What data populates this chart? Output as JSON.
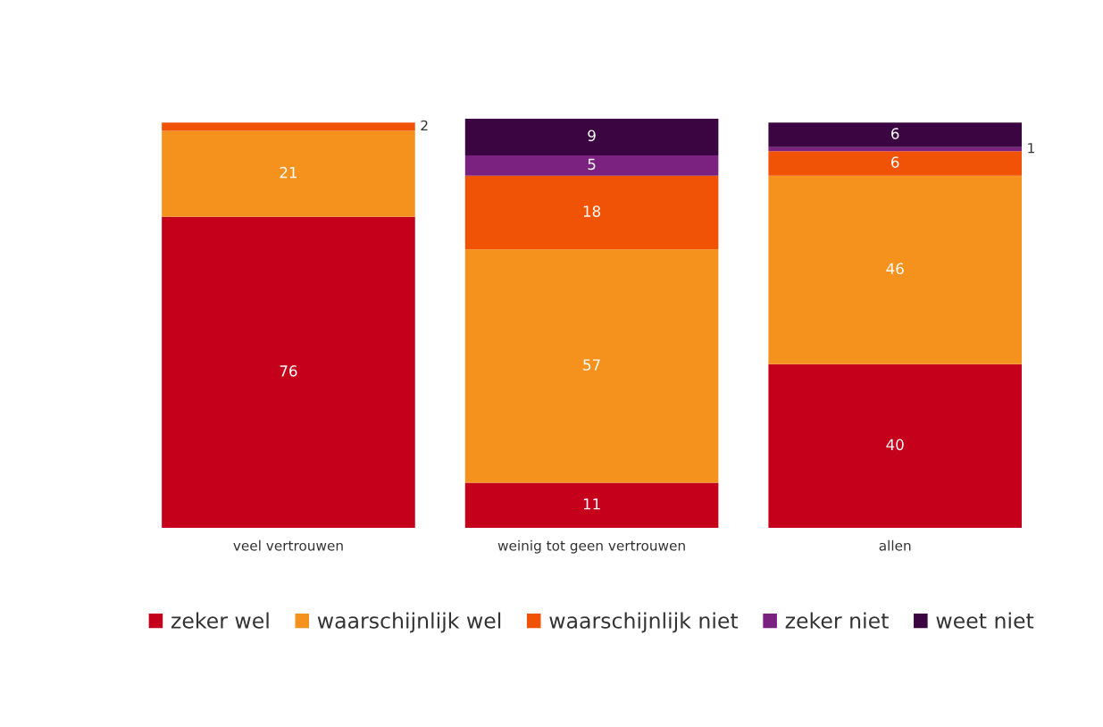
{
  "chart_data": {
    "type": "bar",
    "stacked": true,
    "categories": [
      "veel vertrouwen",
      "weinig tot geen vertrouwen",
      "allen"
    ],
    "series": [
      {
        "name": "zeker wel",
        "color": "#c4001a",
        "values": [
          76,
          11,
          40
        ],
        "value_labels": [
          "76",
          "11",
          "40"
        ]
      },
      {
        "name": "waarschijnlijk wel",
        "color": "#f5921e",
        "values": [
          21,
          57,
          46
        ],
        "value_labels": [
          "21",
          "57",
          "46"
        ]
      },
      {
        "name": "waarschijnlijk niet",
        "color": "#f05206",
        "values": [
          2,
          18,
          6
        ],
        "value_labels": [
          "2",
          "18",
          "6"
        ]
      },
      {
        "name": "zeker niet",
        "color": "#7b2180",
        "values": [
          0,
          5,
          1
        ],
        "value_labels": [
          null,
          "5",
          "1"
        ]
      },
      {
        "name": "weet niet",
        "color": "#3a0540",
        "values": [
          0,
          9,
          6
        ],
        "value_labels": [
          null,
          "9",
          "6"
        ]
      }
    ],
    "legend": "bottom",
    "grid": false
  }
}
